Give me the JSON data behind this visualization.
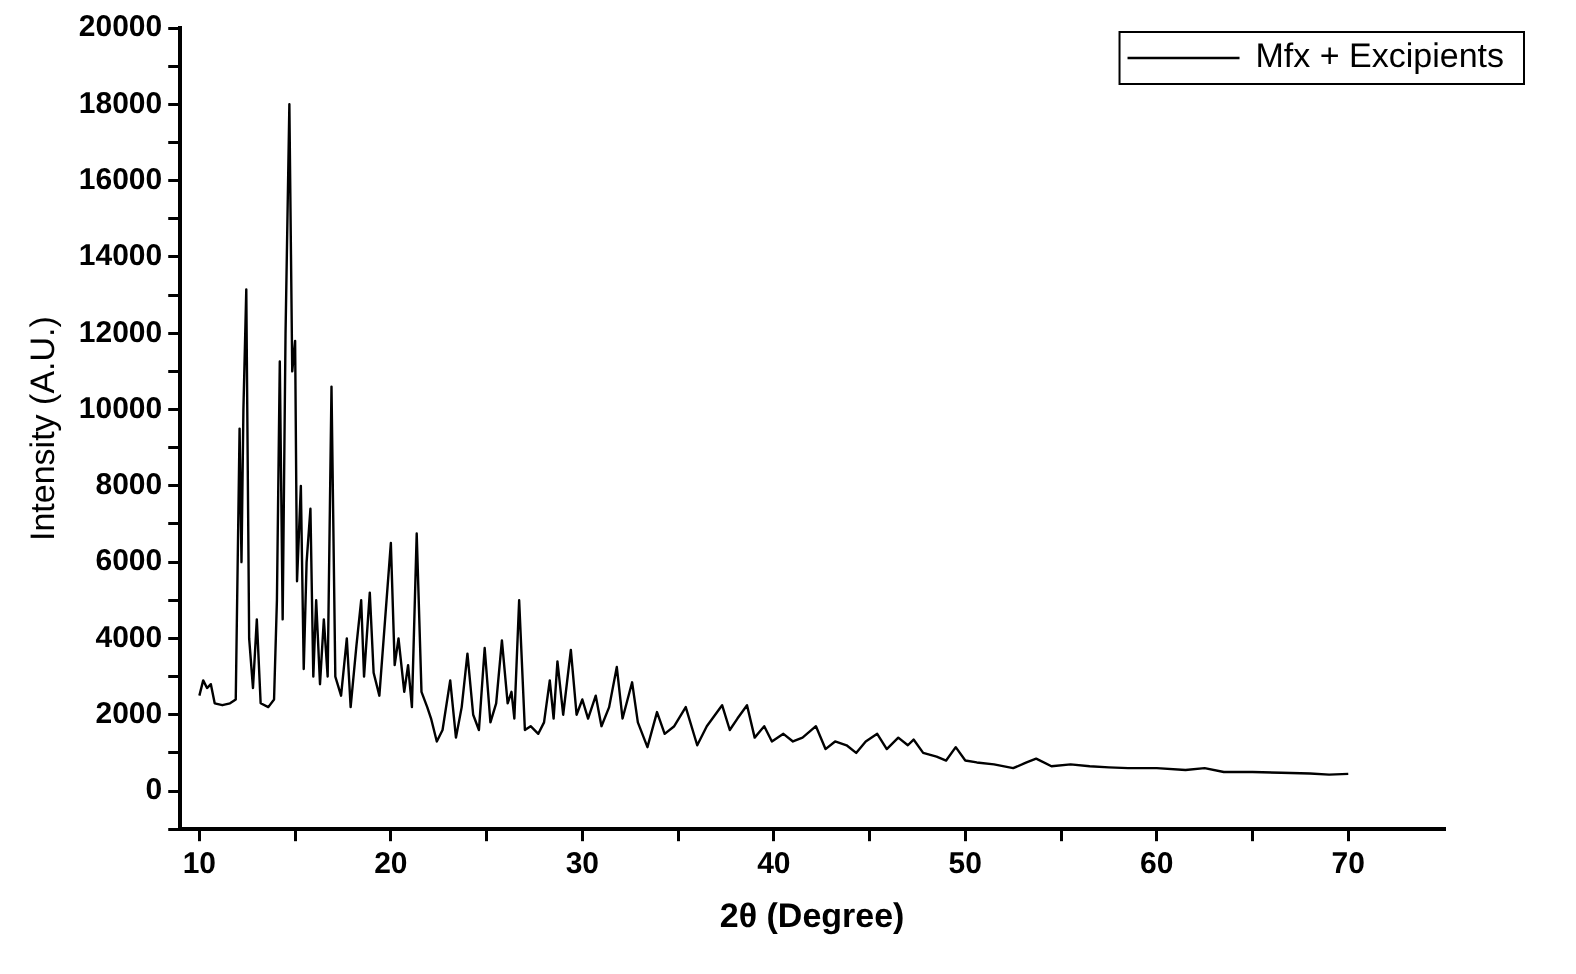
{
  "chart_data": {
    "type": "line",
    "xlabel": "2θ (Degree)",
    "ylabel": "Intensity (A.U.)",
    "xlim": [
      9,
      75
    ],
    "ylim": [
      -1000,
      20000
    ],
    "xticks": [
      10,
      {
        "value": 15,
        "label": null
      },
      20,
      {
        "value": 25,
        "label": null
      },
      30,
      {
        "value": 35,
        "label": null
      },
      40,
      {
        "value": 45,
        "label": null
      },
      50,
      {
        "value": 55,
        "label": null
      },
      60,
      {
        "value": 65,
        "label": null
      },
      70
    ],
    "yticks": [
      {
        "value": -1000,
        "label": null
      },
      0,
      {
        "value": 1000,
        "label": null
      },
      2000,
      {
        "value": 3000,
        "label": null
      },
      4000,
      {
        "value": 5000,
        "label": null
      },
      6000,
      {
        "value": 7000,
        "label": null
      },
      8000,
      {
        "value": 9000,
        "label": null
      },
      10000,
      {
        "value": 11000,
        "label": null
      },
      12000,
      {
        "value": 13000,
        "label": null
      },
      14000,
      {
        "value": 15000,
        "label": null
      },
      16000,
      {
        "value": 17000,
        "label": null
      },
      18000,
      {
        "value": 19000,
        "label": null
      },
      20000
    ],
    "grid": false,
    "legend": "top right",
    "marker": "none",
    "line_style": "solid",
    "series": [
      {
        "name": "Mfx + Excipients",
        "color": "#000000",
        "x": [
          10.0,
          10.2,
          10.4,
          10.6,
          10.8,
          11.2,
          11.6,
          11.9,
          12.1,
          12.2,
          12.3,
          12.45,
          12.6,
          12.8,
          13.0,
          13.2,
          13.6,
          13.9,
          14.05,
          14.2,
          14.35,
          14.5,
          14.7,
          14.85,
          15.0,
          15.1,
          15.3,
          15.45,
          15.6,
          15.8,
          15.95,
          16.1,
          16.3,
          16.5,
          16.7,
          16.9,
          17.1,
          17.4,
          17.7,
          17.9,
          18.2,
          18.45,
          18.6,
          18.9,
          19.1,
          19.4,
          19.7,
          20.0,
          20.2,
          20.4,
          20.7,
          20.9,
          21.1,
          21.35,
          21.6,
          21.9,
          22.1,
          22.4,
          22.7,
          23.1,
          23.4,
          23.7,
          24.0,
          24.3,
          24.6,
          24.9,
          25.2,
          25.5,
          25.8,
          26.1,
          26.3,
          26.45,
          26.7,
          27.0,
          27.3,
          27.7,
          28.0,
          28.3,
          28.5,
          28.7,
          29.0,
          29.4,
          29.7,
          30.0,
          30.3,
          30.7,
          31.0,
          31.4,
          31.8,
          32.1,
          32.6,
          32.9,
          33.4,
          33.9,
          34.3,
          34.8,
          35.4,
          36.0,
          36.5,
          37.3,
          37.7,
          38.1,
          38.6,
          39.0,
          39.5,
          39.9,
          40.5,
          41.0,
          41.5,
          42.2,
          42.7,
          43.2,
          43.8,
          44.3,
          44.8,
          45.4,
          45.9,
          46.5,
          47.0,
          47.3,
          47.8,
          48.5,
          49.0,
          49.5,
          50.0,
          50.6,
          51.5,
          52.5,
          53.2,
          53.7,
          54.5,
          55.5,
          56.5,
          57.5,
          58.5,
          60.0,
          61.5,
          62.5,
          63.5,
          65.0,
          66.5,
          68.0,
          69.0,
          70.0
        ],
        "values": [
          2500,
          2900,
          2700,
          2800,
          2300,
          2250,
          2300,
          2400,
          9500,
          6000,
          10000,
          13150,
          4000,
          2700,
          4500,
          2300,
          2200,
          2400,
          5000,
          11260,
          4500,
          12000,
          18000,
          11000,
          11800,
          5500,
          8000,
          3200,
          6000,
          7400,
          3000,
          5000,
          2800,
          4500,
          3000,
          10600,
          3000,
          2500,
          4000,
          2200,
          3800,
          5000,
          3000,
          5200,
          3100,
          2500,
          4500,
          6500,
          3300,
          4000,
          2600,
          3300,
          2200,
          6750,
          2600,
          2200,
          1900,
          1300,
          1600,
          2900,
          1400,
          2200,
          3600,
          2000,
          1600,
          3750,
          1800,
          2300,
          3950,
          2300,
          2600,
          1900,
          5000,
          1600,
          1700,
          1500,
          1800,
          2900,
          1900,
          3400,
          2000,
          3700,
          2000,
          2400,
          1900,
          2500,
          1700,
          2200,
          3250,
          1900,
          2850,
          1800,
          1150,
          2070,
          1500,
          1700,
          2200,
          1200,
          1700,
          2250,
          1600,
          1900,
          2250,
          1400,
          1700,
          1300,
          1500,
          1300,
          1400,
          1700,
          1100,
          1300,
          1200,
          1000,
          1300,
          1500,
          1100,
          1400,
          1200,
          1350,
          1000,
          900,
          800,
          1150,
          800,
          750,
          700,
          600,
          750,
          850,
          650,
          700,
          650,
          620,
          600,
          600,
          550,
          600,
          500,
          500,
          480,
          460,
          430,
          450
        ]
      }
    ]
  }
}
